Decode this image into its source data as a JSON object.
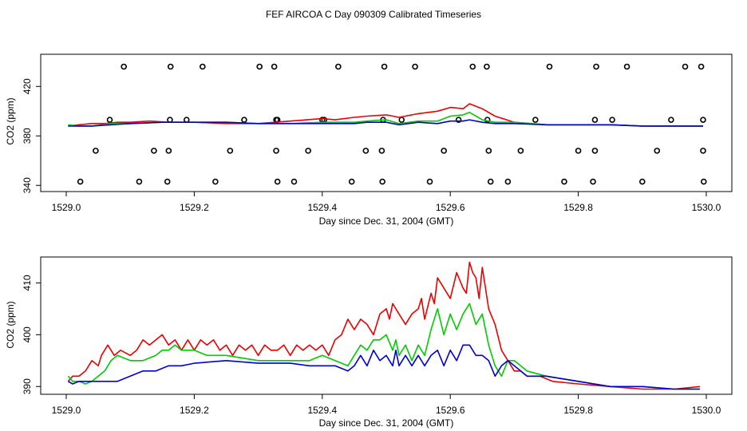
{
  "title": "FEF AIRCOA C  Day 090309  Calibrated Timeseries",
  "colors": {
    "red": "#ee0000",
    "green": "#00cc00",
    "blue": "#0000dd",
    "black": "#000000"
  },
  "chart_data": [
    {
      "type": "scatter+line",
      "xlabel": "Day since Dec. 31, 2004 (GMT)",
      "ylabel": "CO2 (ppm)",
      "xlim": [
        1529.0,
        1530.0
      ],
      "ylim": [
        335,
        446
      ],
      "xticks": [
        1529.0,
        1529.2,
        1529.4,
        1529.6,
        1529.8,
        1530.0
      ],
      "xtick_labels": [
        "1529.0",
        "1529.2",
        "1529.4",
        "1529.6",
        "1529.8",
        "1530.0"
      ],
      "yticks": [
        340,
        380,
        420
      ],
      "ytick_labels": [
        "340",
        "380",
        "420"
      ],
      "calibration_points": {
        "marker": "open-circle",
        "levels": [
          {
            "y": 343,
            "x": [
              1529.022,
              1529.114,
              1529.158,
              1529.233,
              1529.33,
              1529.356,
              1529.446,
              1529.494,
              1529.568,
              1529.663,
              1529.69,
              1529.778,
              1529.823,
              1529.9,
              1529.996
            ]
          },
          {
            "y": 368,
            "x": [
              1529.046,
              1529.137,
              1529.16,
              1529.256,
              1529.328,
              1529.378,
              1529.468,
              1529.493,
              1529.59,
              1529.66,
              1529.71,
              1529.8,
              1529.826,
              1529.923,
              1529.995
            ]
          },
          {
            "y": 393,
            "x": [
              1529.068,
              1529.162,
              1529.188,
              1529.278,
              1529.328,
              1529.33,
              1529.4,
              1529.403,
              1529.495,
              1529.524,
              1529.613,
              1529.658,
              1529.733,
              1529.826,
              1529.853,
              1529.945,
              1529.995
            ]
          },
          {
            "y": 436,
            "x": [
              1529.09,
              1529.163,
              1529.213,
              1529.302,
              1529.325,
              1529.425,
              1529.497,
              1529.545,
              1529.635,
              1529.657,
              1529.755,
              1529.828,
              1529.876,
              1529.967,
              1529.992
            ]
          }
        ]
      },
      "series": [
        {
          "name": "red",
          "color": "#ee0000",
          "x": [
            1529.003,
            1529.02,
            1529.04,
            1529.06,
            1529.08,
            1529.1,
            1529.13,
            1529.16,
            1529.2,
            1529.25,
            1529.3,
            1529.35,
            1529.4,
            1529.42,
            1529.45,
            1529.47,
            1529.5,
            1529.52,
            1529.55,
            1529.58,
            1529.6,
            1529.62,
            1529.63,
            1529.65,
            1529.67,
            1529.7,
            1529.75,
            1529.8,
            1529.85,
            1529.9,
            1529.95,
            1529.995
          ],
          "y": [
            388,
            389,
            390,
            390,
            391,
            391,
            392,
            391,
            391,
            390,
            390,
            392,
            394,
            393,
            395,
            396,
            397,
            395,
            398,
            400,
            403,
            402,
            406,
            402,
            396,
            391,
            389,
            389,
            389,
            388,
            388,
            388
          ]
        },
        {
          "name": "green",
          "color": "#00cc00",
          "x": [
            1529.003,
            1529.02,
            1529.04,
            1529.07,
            1529.1,
            1529.15,
            1529.2,
            1529.25,
            1529.3,
            1529.35,
            1529.4,
            1529.45,
            1529.47,
            1529.5,
            1529.52,
            1529.55,
            1529.58,
            1529.6,
            1529.62,
            1529.63,
            1529.65,
            1529.67,
            1529.7,
            1529.75,
            1529.8,
            1529.85,
            1529.9,
            1529.95,
            1529.995
          ],
          "y": [
            389,
            388,
            388,
            390,
            390,
            391,
            391,
            391,
            390,
            390,
            391,
            391,
            392,
            393,
            390,
            392,
            392,
            396,
            397,
            399,
            393,
            391,
            391,
            389,
            389,
            389,
            388,
            388,
            388
          ]
        },
        {
          "name": "blue",
          "color": "#0000dd",
          "x": [
            1529.003,
            1529.02,
            1529.04,
            1529.07,
            1529.1,
            1529.15,
            1529.2,
            1529.25,
            1529.3,
            1529.35,
            1529.4,
            1529.45,
            1529.47,
            1529.5,
            1529.52,
            1529.55,
            1529.58,
            1529.6,
            1529.62,
            1529.63,
            1529.65,
            1529.67,
            1529.7,
            1529.75,
            1529.8,
            1529.85,
            1529.9,
            1529.95,
            1529.995
          ],
          "y": [
            388,
            388,
            388,
            389,
            390,
            391,
            391,
            391,
            390,
            390,
            390,
            390,
            391,
            391,
            389,
            391,
            390,
            392,
            392,
            393,
            391,
            390,
            390,
            389,
            389,
            389,
            388,
            388,
            388
          ]
        }
      ]
    },
    {
      "type": "line",
      "xlabel": "Day since Dec. 31, 2004 (GMT)",
      "ylabel": "CO2 (ppm)",
      "xlim": [
        1529.0,
        1530.0
      ],
      "ylim": [
        388.5,
        415
      ],
      "xticks": [
        1529.0,
        1529.2,
        1529.4,
        1529.6,
        1529.8,
        1530.0
      ],
      "xtick_labels": [
        "1529.0",
        "1529.2",
        "1529.4",
        "1529.6",
        "1529.8",
        "1530.0"
      ],
      "yticks": [
        390,
        400,
        410
      ],
      "ytick_labels": [
        "390",
        "400",
        "410"
      ],
      "series": [
        {
          "name": "red",
          "color": "#ee0000",
          "x": [
            1529.003,
            1529.01,
            1529.02,
            1529.03,
            1529.04,
            1529.05,
            1529.055,
            1529.065,
            1529.075,
            1529.085,
            1529.1,
            1529.11,
            1529.12,
            1529.13,
            1529.14,
            1529.15,
            1529.16,
            1529.17,
            1529.18,
            1529.19,
            1529.2,
            1529.21,
            1529.22,
            1529.23,
            1529.24,
            1529.25,
            1529.26,
            1529.27,
            1529.28,
            1529.29,
            1529.3,
            1529.31,
            1529.32,
            1529.33,
            1529.34,
            1529.35,
            1529.36,
            1529.37,
            1529.38,
            1529.39,
            1529.4,
            1529.41,
            1529.42,
            1529.43,
            1529.44,
            1529.45,
            1529.46,
            1529.47,
            1529.48,
            1529.49,
            1529.5,
            1529.505,
            1529.51,
            1529.52,
            1529.525,
            1529.53,
            1529.54,
            1529.55,
            1529.555,
            1529.56,
            1529.57,
            1529.575,
            1529.58,
            1529.59,
            1529.6,
            1529.61,
            1529.62,
            1529.625,
            1529.63,
            1529.635,
            1529.64,
            1529.645,
            1529.65,
            1529.655,
            1529.66,
            1529.67,
            1529.68,
            1529.69,
            1529.7,
            1529.71,
            1529.72,
            1529.74,
            1529.76,
            1529.8,
            1529.85,
            1529.9,
            1529.95,
            1529.99
          ],
          "y": [
            391,
            392,
            392,
            393,
            395,
            394,
            396,
            398,
            396,
            397,
            396,
            397,
            399,
            398,
            399,
            400,
            398,
            399,
            397,
            399,
            397,
            399,
            398,
            399,
            397,
            398,
            396,
            398,
            397,
            398,
            396,
            398,
            397,
            397,
            398,
            396,
            398,
            397,
            398,
            397,
            398,
            396,
            399,
            400,
            403,
            401,
            403,
            402,
            400,
            404,
            405,
            403,
            406,
            404,
            403,
            402,
            404,
            405,
            407,
            403,
            408,
            406,
            411,
            409,
            407,
            412,
            409,
            408,
            414,
            412,
            411,
            407,
            413,
            409,
            405,
            402,
            397,
            395,
            393,
            393,
            392,
            392,
            391,
            390.5,
            390,
            389.5,
            389.5,
            390
          ]
        },
        {
          "name": "green",
          "color": "#00cc00",
          "x": [
            1529.003,
            1529.01,
            1529.02,
            1529.03,
            1529.04,
            1529.05,
            1529.06,
            1529.07,
            1529.08,
            1529.1,
            1529.12,
            1529.14,
            1529.15,
            1529.16,
            1529.17,
            1529.18,
            1529.2,
            1529.22,
            1529.25,
            1529.3,
            1529.35,
            1529.38,
            1529.4,
            1529.42,
            1529.44,
            1529.46,
            1529.47,
            1529.48,
            1529.49,
            1529.5,
            1529.51,
            1529.515,
            1529.52,
            1529.53,
            1529.54,
            1529.55,
            1529.56,
            1529.57,
            1529.58,
            1529.59,
            1529.6,
            1529.61,
            1529.62,
            1529.63,
            1529.64,
            1529.65,
            1529.66,
            1529.67,
            1529.68,
            1529.69,
            1529.7,
            1529.72,
            1529.75,
            1529.8,
            1529.85,
            1529.9,
            1529.95,
            1529.99
          ],
          "y": [
            392,
            391,
            391,
            390.5,
            391,
            392,
            393,
            395,
            396,
            395,
            395,
            396,
            397,
            397,
            398,
            397,
            397,
            396,
            396,
            395,
            395,
            395,
            396,
            395,
            394,
            398,
            397,
            399,
            399,
            400,
            397,
            399,
            396,
            398,
            395,
            398,
            396,
            401,
            405,
            400,
            404,
            401,
            404,
            406,
            402,
            404,
            398,
            394,
            392,
            395,
            395,
            393,
            392,
            391,
            390,
            390,
            389.5,
            389.5
          ]
        },
        {
          "name": "blue",
          "color": "#0000dd",
          "x": [
            1529.003,
            1529.01,
            1529.02,
            1529.04,
            1529.06,
            1529.08,
            1529.1,
            1529.12,
            1529.14,
            1529.16,
            1529.18,
            1529.2,
            1529.25,
            1529.3,
            1529.35,
            1529.38,
            1529.4,
            1529.42,
            1529.44,
            1529.45,
            1529.46,
            1529.47,
            1529.48,
            1529.49,
            1529.5,
            1529.51,
            1529.515,
            1529.52,
            1529.53,
            1529.54,
            1529.55,
            1529.56,
            1529.57,
            1529.58,
            1529.59,
            1529.6,
            1529.61,
            1529.62,
            1529.63,
            1529.64,
            1529.65,
            1529.66,
            1529.67,
            1529.68,
            1529.69,
            1529.7,
            1529.72,
            1529.75,
            1529.8,
            1529.85,
            1529.9,
            1529.95,
            1529.99
          ],
          "y": [
            391,
            390.5,
            391,
            391,
            391,
            391,
            392,
            393,
            393,
            394,
            394,
            394.5,
            395,
            394.5,
            394.5,
            394,
            394,
            394,
            393,
            394,
            396,
            394,
            397,
            395,
            396,
            394,
            397,
            394,
            396,
            394,
            396,
            394,
            396,
            397,
            394,
            397,
            395,
            398,
            398,
            396,
            396,
            395,
            392,
            394,
            395,
            394,
            392,
            392,
            391,
            390,
            390,
            389.5,
            389.5
          ]
        }
      ]
    }
  ]
}
